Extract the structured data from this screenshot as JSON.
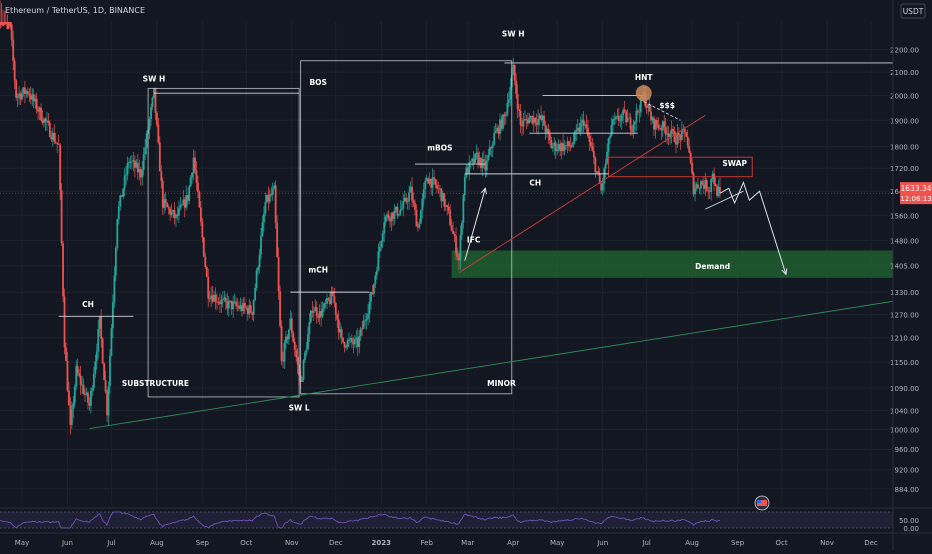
{
  "header": {
    "symbol_title": "Ethereum / TetherUS, 1D, BINANCE",
    "currency_label": "USDT"
  },
  "price_tag": {
    "price": "1633.34",
    "countdown": "12:06:13"
  },
  "colors": {
    "background": "#131722",
    "up": "#26a69a",
    "down": "#ef5350",
    "grid": "#1e222d",
    "axis_text": "#b2b5be",
    "annotation": "#d1d4dc",
    "trendline_red": "#d23a3a",
    "trendline_green": "#2e8b57",
    "demand_zone": "#1e5e2f",
    "rsi_line": "#7e57c2"
  },
  "icons": {
    "pivot_marker": "orange-circle",
    "indicator_flag": "us-flag-icon"
  },
  "chart_data": {
    "type": "candlestick",
    "y_scale": "log",
    "ylim": [
      855,
      2330
    ],
    "y_ticks": [
      "2200.00",
      "2100.00",
      "2000.00",
      "1900.00",
      "1800.00",
      "1720.00",
      "1640.00",
      "1560.00",
      "1480.00",
      "1405.00",
      "1330.00",
      "1270.00",
      "1210.00",
      "1150.00",
      "1090.00",
      "1040.00",
      "1000.00",
      "960.00",
      "920.00",
      "884.00"
    ],
    "x_ticks": [
      "May",
      "Jun",
      "Jul",
      "Aug",
      "Sep",
      "Oct",
      "Nov",
      "Dec",
      "2023",
      "Feb",
      "Mar",
      "Apr",
      "May",
      "Jun",
      "Jul",
      "Aug",
      "Sep",
      "Oct",
      "Nov",
      "Dec"
    ],
    "x_range": [
      "2022-05-01",
      "2023-12-31"
    ],
    "price_path": [
      [
        "2022-05-01",
        2500
      ],
      [
        "2022-05-08",
        2300
      ],
      [
        "2022-05-12",
        2000
      ],
      [
        "2022-05-20",
        2020
      ],
      [
        "2022-05-31",
        1900
      ],
      [
        "2022-06-10",
        1800
      ],
      [
        "2022-06-14",
        1200
      ],
      [
        "2022-06-18",
        1000
      ],
      [
        "2022-06-22",
        1130
      ],
      [
        "2022-07-01",
        1050
      ],
      [
        "2022-07-08",
        1250
      ],
      [
        "2022-07-13",
        1040
      ],
      [
        "2022-07-20",
        1560
      ],
      [
        "2022-07-28",
        1750
      ],
      [
        "2022-08-05",
        1700
      ],
      [
        "2022-08-14",
        2010
      ],
      [
        "2022-08-20",
        1600
      ],
      [
        "2022-08-29",
        1550
      ],
      [
        "2022-09-06",
        1620
      ],
      [
        "2022-09-10",
        1760
      ],
      [
        "2022-09-20",
        1330
      ],
      [
        "2022-09-30",
        1300
      ],
      [
        "2022-10-10",
        1290
      ],
      [
        "2022-10-20",
        1280
      ],
      [
        "2022-10-29",
        1600
      ],
      [
        "2022-11-04",
        1640
      ],
      [
        "2022-11-09",
        1150
      ],
      [
        "2022-11-15",
        1250
      ],
      [
        "2022-11-22",
        1100
      ],
      [
        "2022-11-30",
        1290
      ],
      [
        "2022-12-05",
        1270
      ],
      [
        "2022-12-14",
        1320
      ],
      [
        "2022-12-20",
        1200
      ],
      [
        "2022-12-31",
        1195
      ],
      [
        "2023-01-10",
        1330
      ],
      [
        "2023-01-18",
        1550
      ],
      [
        "2023-01-30",
        1580
      ],
      [
        "2023-02-05",
        1640
      ],
      [
        "2023-02-10",
        1520
      ],
      [
        "2023-02-16",
        1690
      ],
      [
        "2023-02-25",
        1640
      ],
      [
        "2023-03-03",
        1560
      ],
      [
        "2023-03-10",
        1420
      ],
      [
        "2023-03-14",
        1700
      ],
      [
        "2023-03-22",
        1760
      ],
      [
        "2023-03-28",
        1720
      ],
      [
        "2023-04-03",
        1840
      ],
      [
        "2023-04-10",
        1910
      ],
      [
        "2023-04-16",
        2110
      ],
      [
        "2023-04-21",
        1880
      ],
      [
        "2023-04-27",
        1910
      ],
      [
        "2023-05-06",
        1900
      ],
      [
        "2023-05-12",
        1800
      ],
      [
        "2023-05-25",
        1800
      ],
      [
        "2023-06-03",
        1900
      ],
      [
        "2023-06-10",
        1750
      ],
      [
        "2023-06-15",
        1640
      ],
      [
        "2023-06-22",
        1880
      ],
      [
        "2023-06-30",
        1920
      ],
      [
        "2023-07-06",
        1880
      ],
      [
        "2023-07-14",
        2000
      ],
      [
        "2023-07-20",
        1890
      ],
      [
        "2023-07-28",
        1870
      ],
      [
        "2023-08-05",
        1830
      ],
      [
        "2023-08-12",
        1850
      ],
      [
        "2023-08-17",
        1650
      ],
      [
        "2023-08-22",
        1670
      ],
      [
        "2023-08-28",
        1650
      ],
      [
        "2023-08-30",
        1710
      ],
      [
        "2023-09-01",
        1645
      ],
      [
        "2023-09-04",
        1633
      ]
    ],
    "volatility": 0.026,
    "annotations": [
      {
        "text": "SW H",
        "date": "2022-08-14",
        "price": 2060
      },
      {
        "text": "SW H",
        "date": "2023-04-16",
        "price": 2260
      },
      {
        "text": "BOS",
        "date": "2022-12-04",
        "price": 2045
      },
      {
        "text": "HNT",
        "date": "2023-07-14",
        "price": 2065
      },
      {
        "text": "$$$",
        "date": "2023-07-30",
        "price": 1950
      },
      {
        "text": "mBOS",
        "date": "2023-02-25",
        "price": 1785
      },
      {
        "text": "SWAP",
        "date": "2023-09-14",
        "price": 1728
      },
      {
        "text": "CH",
        "date": "2023-05-01",
        "price": 1660
      },
      {
        "text": "IFC",
        "date": "2023-03-20",
        "price": 1475
      },
      {
        "text": "Demand",
        "date": "2023-08-30",
        "price": 1395
      },
      {
        "text": "mCH",
        "date": "2022-12-04",
        "price": 1385
      },
      {
        "text": "CH",
        "date": "2022-06-30",
        "price": 1290
      },
      {
        "text": "SUBSTRUCTURE",
        "date": "2022-08-15",
        "price": 1095
      },
      {
        "text": "MINOR",
        "date": "2023-04-08",
        "price": 1095
      },
      {
        "text": "SW L",
        "date": "2022-11-21",
        "price": 1040
      }
    ],
    "boxes": [
      {
        "name": "substructure-box",
        "from": "2022-08-10",
        "to": "2022-11-21",
        "low": 1070,
        "high": 2030
      },
      {
        "name": "minor-box",
        "from": "2022-11-22",
        "to": "2023-04-15",
        "low": 1077,
        "high": 2150
      },
      {
        "name": "swap-box",
        "from": "2023-06-20",
        "to": "2023-09-26",
        "low": 1690,
        "high": 1760,
        "color": "#d23a3a"
      },
      {
        "name": "demand-zone",
        "from": "2023-03-05",
        "to": "2023-12-31",
        "low": 1370,
        "high": 1450,
        "fill": "#1e5e2f"
      }
    ],
    "lines": [
      {
        "name": "sw-high-line",
        "from": [
          "2023-04-10",
          2140
        ],
        "to": [
          "2023-12-31",
          2140
        ],
        "color": "#d1d4dc"
      },
      {
        "name": "bos-line",
        "from": [
          "2022-08-14",
          2010
        ],
        "to": [
          "2022-11-21",
          2010
        ],
        "color": "#d1d4dc"
      },
      {
        "name": "hnt-line",
        "from": [
          "2023-05-06",
          2000
        ],
        "to": [
          "2023-07-14",
          2000
        ],
        "color": "#d1d4dc"
      },
      {
        "name": "mid-level-line",
        "from": [
          "2023-04-27",
          1850
        ],
        "to": [
          "2023-07-10",
          1850
        ],
        "color": "#d1d4dc"
      },
      {
        "name": "mbos-line",
        "from": [
          "2023-02-08",
          1735
        ],
        "to": [
          "2023-03-28",
          1735
        ],
        "color": "#d1d4dc"
      },
      {
        "name": "ch-line-2023",
        "from": [
          "2023-03-14",
          1700
        ],
        "to": [
          "2023-06-20",
          1700
        ],
        "color": "#d1d4dc"
      },
      {
        "name": "mch-line",
        "from": [
          "2022-11-15",
          1330
        ],
        "to": [
          "2023-01-08",
          1330
        ],
        "color": "#d1d4dc"
      },
      {
        "name": "ch-line-2022",
        "from": [
          "2022-06-10",
          1265
        ],
        "to": [
          "2022-07-31",
          1265
        ],
        "color": "#d1d4dc"
      },
      {
        "name": "red-trendline",
        "from": [
          "2023-03-10",
          1385
        ],
        "to": [
          "2023-08-25",
          1920
        ],
        "color": "#d23a3a"
      },
      {
        "name": "green-trendline",
        "from": [
          "2022-07-01",
          1002
        ],
        "to": [
          "2023-12-31",
          1305
        ],
        "color": "#2e8b57"
      },
      {
        "name": "liquidity-line",
        "from": [
          "2023-07-14",
          1975
        ],
        "to": [
          "2023-08-08",
          1900
        ],
        "color": "#d1d4dc",
        "dashed": true
      },
      {
        "name": "wedge-low-line",
        "from": [
          "2023-08-25",
          1580
        ],
        "to": [
          "2023-09-20",
          1640
        ],
        "color": "#d1d4dc"
      }
    ],
    "arrows": [
      {
        "name": "ifc-arrow",
        "points": [
          [
            "2023-03-14",
            1420
          ],
          [
            "2023-03-28",
            1650
          ]
        ]
      },
      {
        "name": "projection-arrow",
        "points": [
          [
            "2023-09-04",
            1633
          ],
          [
            "2023-09-10",
            1650
          ],
          [
            "2023-09-14",
            1600
          ],
          [
            "2023-09-20",
            1670
          ],
          [
            "2023-09-24",
            1610
          ],
          [
            "2023-10-01",
            1640
          ],
          [
            "2023-10-19",
            1380
          ]
        ]
      }
    ],
    "pivot_marker": {
      "date": "2023-07-14",
      "price": 2010
    },
    "rsi": {
      "type": "line",
      "upper_band": 70,
      "lower_band": 30,
      "mean": 50
    }
  }
}
